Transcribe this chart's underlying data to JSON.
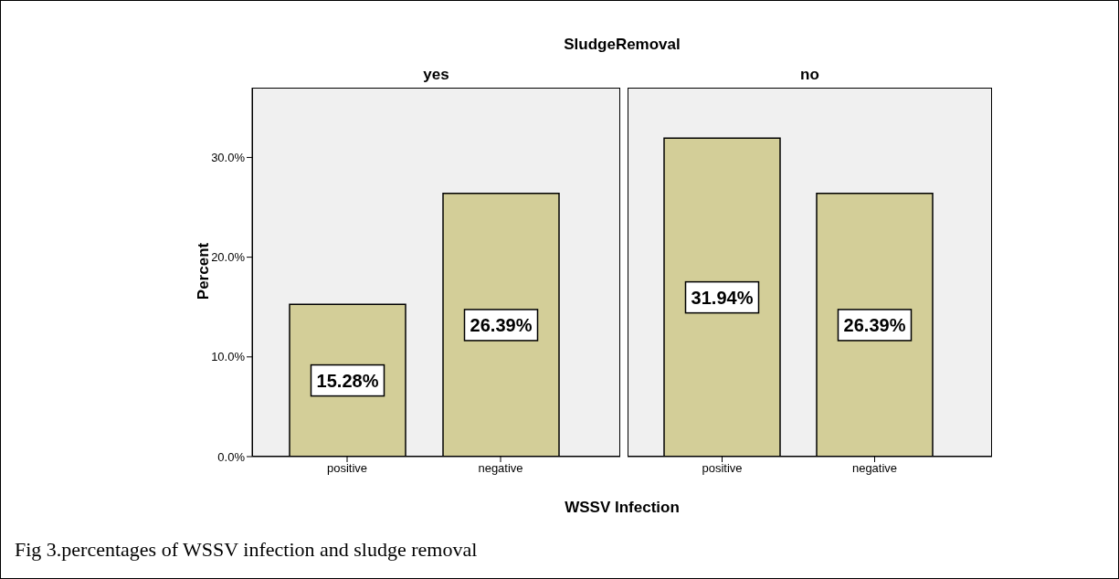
{
  "chart_data": [
    {
      "type": "bar",
      "title": "SludgeRemoval",
      "subtitle": "yes",
      "xlabel": "WSSV Infection",
      "ylabel": "Percent",
      "categories": [
        "positive",
        "negative"
      ],
      "values": [
        15.28,
        26.39
      ],
      "value_labels": [
        "15.28%",
        "26.39%"
      ],
      "color": "#d3ce98",
      "ylim": [
        0,
        37
      ],
      "yticks": [
        {
          "value": 0,
          "label": "0.0%"
        },
        {
          "value": 10,
          "label": "10.0%"
        },
        {
          "value": 20,
          "label": "20.0%"
        },
        {
          "value": 30,
          "label": "30.0%"
        }
      ],
      "grid": false,
      "legend": false,
      "annotations": [
        "Fig 3.percentages of WSSV infection and sludge removal"
      ]
    },
    {
      "type": "bar",
      "subtitle": "no",
      "categories": [
        "positive",
        "negative"
      ],
      "values": [
        31.94,
        26.39
      ],
      "value_labels": [
        "31.94%",
        "26.39%"
      ],
      "color": "#d3ce98",
      "ylim": [
        0,
        37
      ],
      "grid": false,
      "legend": false,
      "tick_labels": "x"
    }
  ]
}
